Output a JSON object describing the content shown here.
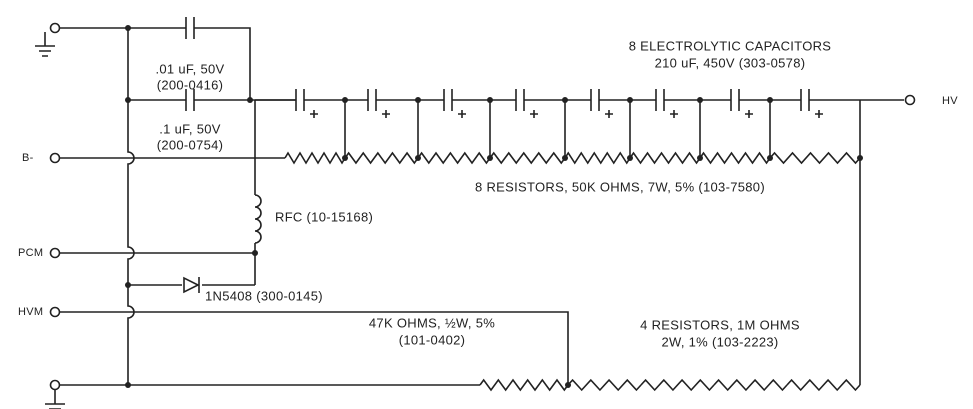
{
  "capacitors": {
    "c1": {
      "value": ".01 uF, 50V",
      "part": "(200-0416)"
    },
    "c2": {
      "value": ".1 uF, 50V",
      "part": "(200-0754)"
    },
    "electrolytic": {
      "title": "8 ELECTROLYTIC CAPACITORS",
      "spec": "210 uF, 450V (303-0578)"
    }
  },
  "terminals": {
    "hv": "HV",
    "b_minus": "B-",
    "pcm": "PCM",
    "hvm": "HVM"
  },
  "resistors": {
    "chain": "8 RESISTORS, 50K OHMS, 7W, 5% (103-7580)",
    "r47k": {
      "value": "47K OHMS, ½W, 5%",
      "part": "(101-0402)"
    },
    "divider": {
      "value": "4 RESISTORS, 1M OHMS",
      "spec": "2W, 1% (103-2223)"
    }
  },
  "rfc": "RFC (10-15168)",
  "diode": "1N5408 (300-0145)"
}
